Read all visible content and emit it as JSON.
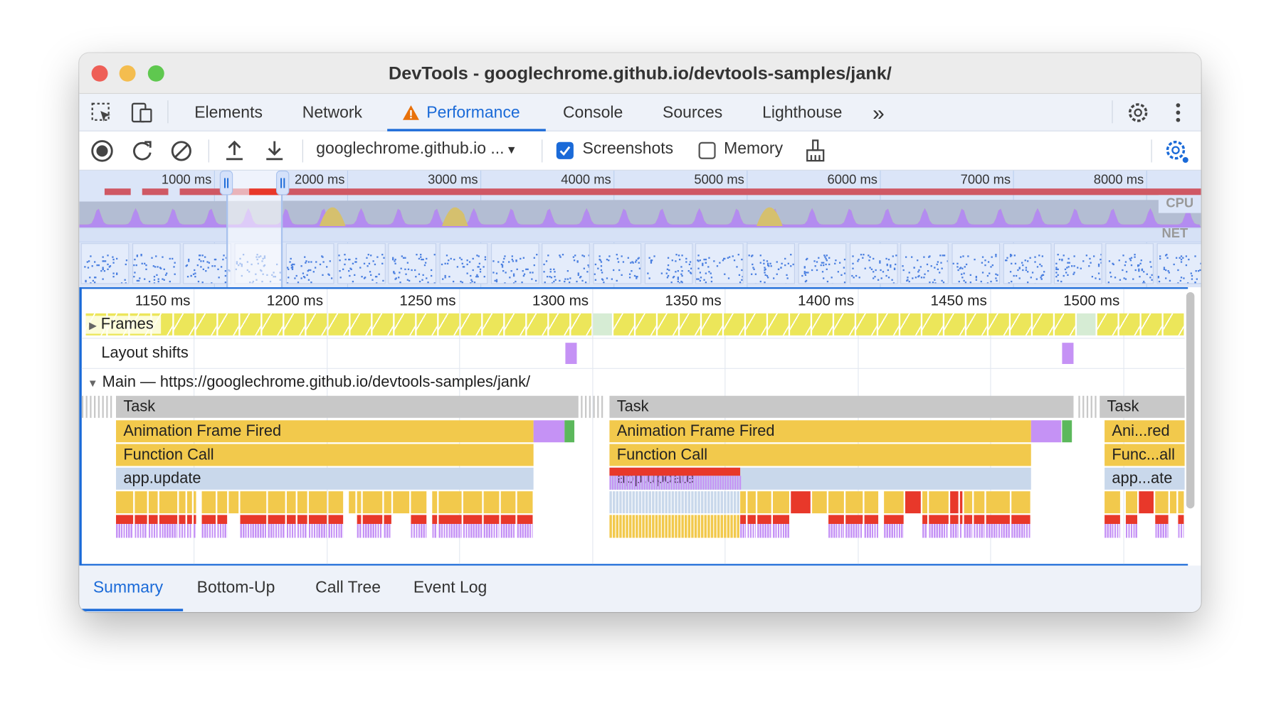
{
  "window": {
    "title": "DevTools - googlechrome.github.io/devtools-samples/jank/"
  },
  "tabs": [
    {
      "label": "Elements"
    },
    {
      "label": "Network"
    },
    {
      "label": "Performance",
      "active": true,
      "warning": true
    },
    {
      "label": "Console"
    },
    {
      "label": "Sources"
    },
    {
      "label": "Lighthouse"
    }
  ],
  "tabs_more": "»",
  "toolbar": {
    "url_select": "googlechrome.github.io ...",
    "screenshots_label": "Screenshots",
    "screenshots_checked": true,
    "memory_label": "Memory",
    "memory_checked": false
  },
  "overview": {
    "ticks": [
      "1000 ms",
      "2000 ms",
      "3000 ms",
      "4000 ms",
      "5000 ms",
      "6000 ms",
      "7000 ms",
      "8000 ms"
    ],
    "cpu_label": "CPU",
    "net_label": "NET"
  },
  "ruler": {
    "ticks": [
      "1150 ms",
      "1200 ms",
      "1250 ms",
      "1300 ms",
      "1350 ms",
      "1400 ms",
      "1450 ms",
      "1500 ms"
    ]
  },
  "tracks": {
    "frames": "Frames",
    "layout_shifts": "Layout shifts",
    "main": "Main — https://googlechrome.github.io/devtools-samples/jank/"
  },
  "events": {
    "task1": "Task",
    "aff1": "Animation Frame Fired",
    "fc1": "Function Call",
    "au1": "app.update",
    "task2": "Task",
    "aff2": "Animation Frame Fired",
    "fc2": "Function Call",
    "au2": "app.update",
    "task3": "Task",
    "aff3": "Ani...red",
    "fc3": "Func...all",
    "au3": "app...ate"
  },
  "bottom_tabs": [
    {
      "label": "Summary",
      "active": true
    },
    {
      "label": "Bottom-Up"
    },
    {
      "label": "Call Tree"
    },
    {
      "label": "Event Log"
    }
  ],
  "colors": {
    "accent": "#1a6ad8",
    "task": "#c8c8c8",
    "long_task": "#e03030",
    "scripting": "#f2c94c",
    "app_update": "#c9d8eb",
    "rendering": "#c592f5",
    "painting": "#5cb85c",
    "frames": "#ece65a"
  }
}
